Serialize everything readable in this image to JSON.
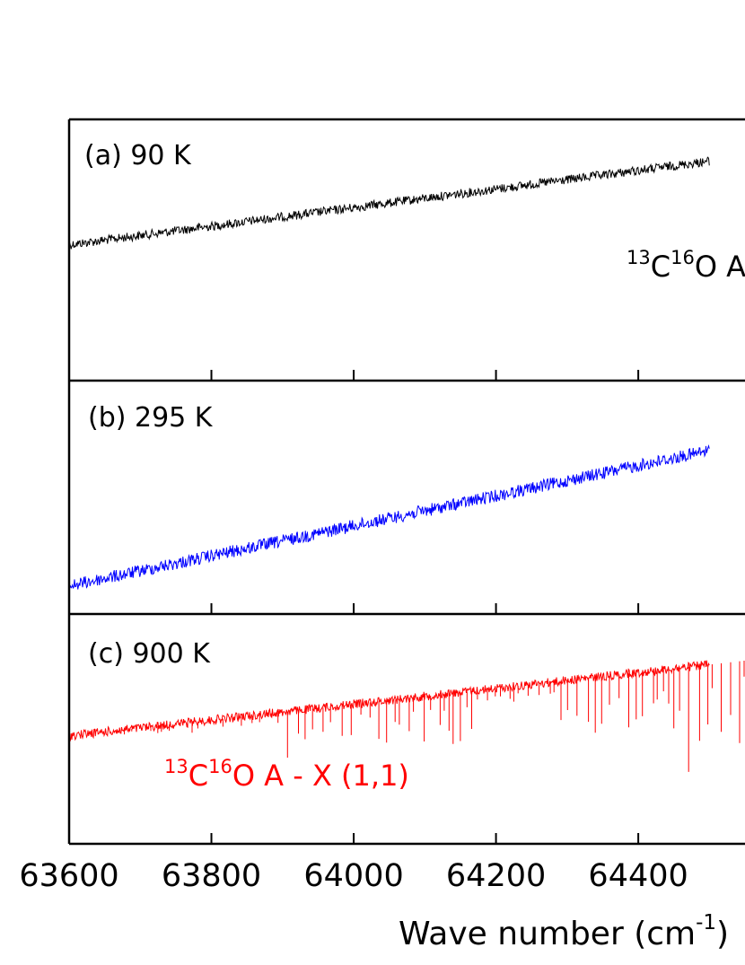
{
  "chart_data": [
    {
      "type": "line",
      "panel_label": "(a) 90 K",
      "series": [
        {
          "color": "#000000",
          "x": [
            63600,
            64500
          ],
          "y": [
            0.52,
            0.84
          ]
        }
      ],
      "annotation": {
        "text_parts": [
          "13",
          "C",
          "16",
          "O A"
        ],
        "color": "#000000"
      },
      "ylim": [
        0,
        1
      ]
    },
    {
      "type": "line",
      "panel_label": "(b) 295 K",
      "series": [
        {
          "color": "#0000ff",
          "x": [
            63600,
            64500
          ],
          "y": [
            0.12,
            0.7
          ]
        }
      ],
      "ylim": [
        0,
        1
      ]
    },
    {
      "type": "line",
      "panel_label": "(c) 900 K",
      "series": [
        {
          "color": "#ff0000",
          "x": [
            63600,
            64500
          ],
          "y": [
            0.47,
            0.78
          ]
        }
      ],
      "annotation": {
        "text_parts": [
          "13",
          "C",
          "16",
          "O A - X (1,1)"
        ],
        "color": "#ff0000"
      },
      "ylim": [
        0,
        1
      ]
    }
  ],
  "x_axis": {
    "ticks": [
      63600,
      63800,
      64000,
      64200,
      64400
    ],
    "tick_labels": [
      "63600",
      "63800",
      "64000",
      "64200",
      "64400"
    ],
    "xlim": [
      63600,
      64550
    ],
    "label_parts": [
      "Wave number (cm",
      "-1",
      ")"
    ]
  }
}
